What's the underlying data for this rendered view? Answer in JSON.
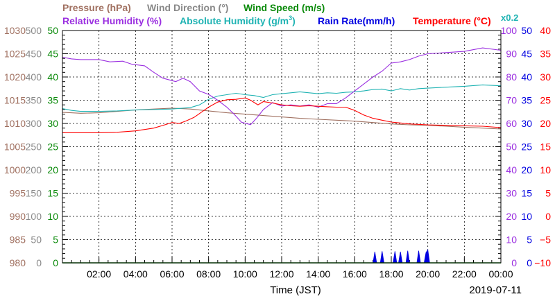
{
  "chart_data": {
    "type": "line",
    "legend": {
      "row1": [
        {
          "key": "pressure",
          "text": "Pressure (hPa)",
          "color": "#a07060"
        },
        {
          "key": "wind_direction",
          "text": "Wind Direction (°)",
          "color": "#888888"
        },
        {
          "key": "wind_speed",
          "text": "Wind Speed (m/s)",
          "color": "#0a8a0a"
        }
      ],
      "row2": [
        {
          "key": "relative_humidity",
          "text": "Relative Humidity (%)",
          "color": "#9a2ee0"
        },
        {
          "key": "absolute_humidity",
          "text": "Absolute Humidity (g/m",
          "sup": "3",
          "tail": ")",
          "color": "#1fb3b3"
        },
        {
          "key": "rain_rate",
          "text": "Rain Rate(mm/h)",
          "color": "#0000e0"
        },
        {
          "key": "temperature",
          "text": "Temperature (°C)",
          "color": "#ff0000"
        }
      ],
      "scale_note": "x0.2",
      "legend_placement": "top"
    },
    "xlabel": "Time (JST)",
    "date": "2019-07-11",
    "x_range_hours": [
      0,
      24
    ],
    "x_ticks": [
      {
        "h": 2,
        "label": "02:00"
      },
      {
        "h": 4,
        "label": "04:00"
      },
      {
        "h": 6,
        "label": "06:00"
      },
      {
        "h": 8,
        "label": "08:00"
      },
      {
        "h": 10,
        "label": "10:00"
      },
      {
        "h": 12,
        "label": "12:00"
      },
      {
        "h": 14,
        "label": "14:00"
      },
      {
        "h": 16,
        "label": "16:00"
      },
      {
        "h": 18,
        "label": "18:00"
      },
      {
        "h": 20,
        "label": "20:00"
      },
      {
        "h": 22,
        "label": "22:00"
      },
      {
        "h": 24,
        "label": "00:00"
      }
    ],
    "grid": true,
    "axes": {
      "pressure": {
        "min": 980,
        "max": 1030,
        "color": "#a07060",
        "ticks": [
          "980",
          "985",
          "990",
          "995",
          "1000",
          "1005",
          "1010",
          "1015",
          "1020",
          "1025",
          "1030"
        ]
      },
      "wind_direction": {
        "min": 0,
        "max": 500,
        "color": "#888888",
        "ticks": [
          "0",
          "50",
          "100",
          "150",
          "200",
          "250",
          "300",
          "350",
          "400",
          "450",
          "500"
        ]
      },
      "wind_speed": {
        "min": 0,
        "max": 50,
        "color": "#0a8a0a",
        "ticks": [
          "0",
          "5",
          "10",
          "15",
          "20",
          "25",
          "30",
          "35",
          "40",
          "45",
          "50"
        ]
      },
      "relative_humidity": {
        "min": 0,
        "max": 100,
        "color": "#9a2ee0",
        "ticks": [
          "0",
          "10",
          "20",
          "30",
          "40",
          "50",
          "60",
          "70",
          "80",
          "90",
          "100"
        ]
      },
      "rain_rate": {
        "min": 0,
        "max": 50,
        "color": "#0000e0",
        "ticks": [
          "0",
          "5",
          "10",
          "15",
          "20",
          "25",
          "30",
          "35",
          "40",
          "45",
          "50"
        ]
      },
      "temperature": {
        "min": -10,
        "max": 40,
        "color": "#ff0000",
        "ticks": [
          "−10",
          "−5",
          "0",
          "5",
          "10",
          "15",
          "20",
          "25",
          "30",
          "35",
          "40"
        ]
      }
    },
    "series": [
      {
        "key": "pressure",
        "name": "Pressure",
        "axis": "pressure",
        "color": "#a07060",
        "points": [
          [
            0,
            1012.4
          ],
          [
            1,
            1012.2
          ],
          [
            2,
            1012.3
          ],
          [
            3,
            1012.6
          ],
          [
            4,
            1012.9
          ],
          [
            5,
            1013.1
          ],
          [
            6,
            1013.3
          ],
          [
            7,
            1013.1
          ],
          [
            8,
            1012.7
          ],
          [
            9,
            1012.3
          ],
          [
            10,
            1012.0
          ],
          [
            11,
            1011.7
          ],
          [
            12,
            1011.4
          ],
          [
            13,
            1011.1
          ],
          [
            14,
            1010.9
          ],
          [
            15,
            1010.7
          ],
          [
            16,
            1010.5
          ],
          [
            17,
            1010.2
          ],
          [
            18,
            1009.9
          ],
          [
            19,
            1009.7
          ],
          [
            20,
            1009.6
          ],
          [
            21,
            1009.4
          ],
          [
            22,
            1009.2
          ],
          [
            23,
            1009.0
          ],
          [
            24,
            1008.8
          ]
        ]
      },
      {
        "key": "relative_humidity",
        "name": "Relative Humidity",
        "axis": "relative_humidity",
        "color": "#9a2ee0",
        "points": [
          [
            0,
            88.5
          ],
          [
            0.5,
            87.8
          ],
          [
            1,
            87.5
          ],
          [
            2,
            87.5
          ],
          [
            2.6,
            86.5
          ],
          [
            3.3,
            86.8
          ],
          [
            3.8,
            85.5
          ],
          [
            4.5,
            84.8
          ],
          [
            5,
            82
          ],
          [
            5.5,
            79.5
          ],
          [
            6.2,
            78
          ],
          [
            6.6,
            79.5
          ],
          [
            7,
            78
          ],
          [
            7.5,
            74
          ],
          [
            8,
            72.5
          ],
          [
            8.5,
            70
          ],
          [
            9,
            67
          ],
          [
            9.4,
            64
          ],
          [
            9.8,
            60.5
          ],
          [
            10.3,
            59.5
          ],
          [
            10.6,
            62
          ],
          [
            11,
            66
          ],
          [
            11.5,
            69
          ],
          [
            12,
            67.5
          ],
          [
            12.5,
            68
          ],
          [
            13,
            67.5
          ],
          [
            13.5,
            68
          ],
          [
            14,
            67
          ],
          [
            14.5,
            68.5
          ],
          [
            15,
            68.5
          ],
          [
            15.5,
            71
          ],
          [
            16,
            74
          ],
          [
            16.5,
            77
          ],
          [
            17,
            80
          ],
          [
            17.5,
            82.5
          ],
          [
            18,
            86
          ],
          [
            18.5,
            86.5
          ],
          [
            19,
            87.5
          ],
          [
            19.5,
            89
          ],
          [
            20,
            90
          ],
          [
            21,
            90.5
          ],
          [
            22,
            91
          ],
          [
            23,
            92.5
          ],
          [
            24,
            91.5
          ]
        ]
      },
      {
        "key": "absolute_humidity",
        "name": "Absolute Humidity",
        "axis": "wind_speed",
        "scale": 0.2,
        "color": "#1fb3b3",
        "points": [
          [
            0,
            33.2
          ],
          [
            0.5,
            32.8
          ],
          [
            1,
            32.6
          ],
          [
            2,
            32.6
          ],
          [
            3,
            32.7
          ],
          [
            4,
            32.9
          ],
          [
            5,
            33.0
          ],
          [
            6,
            33.1
          ],
          [
            6.6,
            33.3
          ],
          [
            7,
            33.4
          ],
          [
            7.5,
            34.0
          ],
          [
            8,
            35.2
          ],
          [
            8.5,
            35.9
          ],
          [
            9,
            36.2
          ],
          [
            9.5,
            36.5
          ],
          [
            10,
            36.2
          ],
          [
            10.5,
            36.0
          ],
          [
            11,
            35.6
          ],
          [
            11.5,
            36.2
          ],
          [
            12,
            36.4
          ],
          [
            12.5,
            36.6
          ],
          [
            13,
            36.8
          ],
          [
            13.5,
            36.6
          ],
          [
            14,
            36.4
          ],
          [
            14.5,
            36.6
          ],
          [
            15,
            36.5
          ],
          [
            15.5,
            36.7
          ],
          [
            16,
            36.8
          ],
          [
            16.5,
            37.0
          ],
          [
            17,
            37.3
          ],
          [
            17.5,
            37.4
          ],
          [
            18,
            37.0
          ],
          [
            18.5,
            37.5
          ],
          [
            19,
            37.2
          ],
          [
            19.5,
            37.5
          ],
          [
            20,
            37.6
          ],
          [
            21,
            37.8
          ],
          [
            22,
            38.0
          ],
          [
            23,
            38.3
          ],
          [
            24,
            38.1
          ]
        ]
      },
      {
        "key": "temperature",
        "name": "Temperature",
        "axis": "temperature",
        "color": "#ff0000",
        "points": [
          [
            0,
            18.0
          ],
          [
            1,
            18.0
          ],
          [
            2,
            18.0
          ],
          [
            3,
            18.1
          ],
          [
            4,
            18.4
          ],
          [
            5,
            19.0
          ],
          [
            5.6,
            19.7
          ],
          [
            6,
            20.2
          ],
          [
            6.4,
            20.0
          ],
          [
            6.8,
            20.6
          ],
          [
            7.2,
            21.3
          ],
          [
            7.6,
            22.4
          ],
          [
            8,
            23.5
          ],
          [
            8.5,
            24.6
          ],
          [
            9,
            25.1
          ],
          [
            9.5,
            25.2
          ],
          [
            10,
            25.5
          ],
          [
            10.3,
            25.0
          ],
          [
            10.7,
            24.0
          ],
          [
            11,
            24.7
          ],
          [
            11.5,
            24.4
          ],
          [
            12,
            24.0
          ],
          [
            12.5,
            23.8
          ],
          [
            13,
            23.7
          ],
          [
            13.5,
            23.8
          ],
          [
            14,
            23.7
          ],
          [
            14.5,
            23.6
          ],
          [
            15,
            23.5
          ],
          [
            15.5,
            23.5
          ],
          [
            16,
            22.8
          ],
          [
            16.5,
            21.8
          ],
          [
            17,
            21.1
          ],
          [
            17.5,
            20.7
          ],
          [
            18,
            20.3
          ],
          [
            18.5,
            20.1
          ],
          [
            19,
            19.9
          ],
          [
            20,
            19.7
          ],
          [
            21,
            19.6
          ],
          [
            22,
            19.5
          ],
          [
            23,
            19.4
          ],
          [
            24,
            19.1
          ]
        ]
      },
      {
        "key": "wind_speed",
        "name": "Wind Speed",
        "axis": "wind_speed",
        "color": "#0a8a0a",
        "points": [
          [
            0,
            0
          ],
          [
            24,
            0
          ]
        ]
      },
      {
        "key": "rain_rate",
        "name": "Rain Rate",
        "axis": "rain_rate",
        "color": "#0000e0",
        "type": "bar",
        "points": [
          [
            17.0,
            0
          ],
          [
            17.1,
            2.4
          ],
          [
            17.2,
            0
          ],
          [
            17.4,
            0
          ],
          [
            17.5,
            2.5
          ],
          [
            17.6,
            0
          ],
          [
            18.1,
            0
          ],
          [
            18.2,
            2.5
          ],
          [
            18.3,
            0
          ],
          [
            18.4,
            0
          ],
          [
            18.5,
            2.4
          ],
          [
            18.6,
            0
          ],
          [
            18.8,
            0
          ],
          [
            18.9,
            2.6
          ],
          [
            19.0,
            0
          ],
          [
            19.4,
            0
          ],
          [
            19.5,
            2.6
          ],
          [
            19.6,
            0
          ],
          [
            19.8,
            0
          ],
          [
            19.9,
            2.2
          ],
          [
            20.0,
            2.8
          ],
          [
            20.1,
            0
          ]
        ]
      }
    ]
  }
}
